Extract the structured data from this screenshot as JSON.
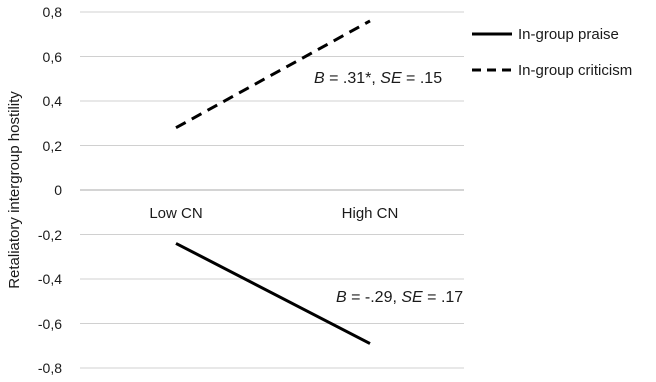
{
  "chart_data": {
    "type": "line",
    "categories": [
      "Low CN",
      "High CN"
    ],
    "series": [
      {
        "name": "In-group praise",
        "values": [
          -0.24,
          -0.69
        ],
        "style": "solid",
        "color": "#000000"
      },
      {
        "name": "In-group criticism",
        "values": [
          0.28,
          0.76
        ],
        "style": "dashed",
        "color": "#000000"
      }
    ],
    "ylabel": "Retaliatory intergroup hostility",
    "ylim": [
      -0.8,
      0.8
    ],
    "yticks": [
      "0,8",
      "0,6",
      "0,4",
      "0,2",
      "0",
      "-0,2",
      "-0,4",
      "-0,6",
      "-0,8"
    ],
    "grid": true,
    "legend_position": "right",
    "annotations": {
      "criticism": {
        "b_label": "B",
        "b_value": " = .31*, ",
        "se_label": "SE",
        "se_value": " = .15"
      },
      "praise": {
        "b_label": "B",
        "b_value": " = -.29, ",
        "se_label": "SE",
        "se_value": " = .17"
      }
    }
  }
}
